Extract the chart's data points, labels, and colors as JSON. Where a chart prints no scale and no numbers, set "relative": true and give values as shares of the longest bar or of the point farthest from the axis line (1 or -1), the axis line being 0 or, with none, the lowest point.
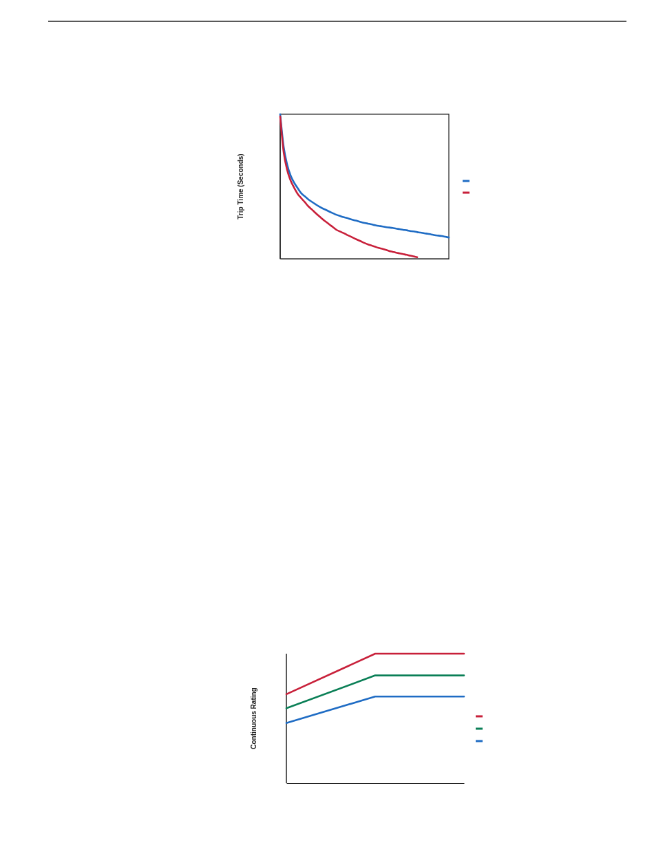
{
  "chart_data": [
    {
      "type": "line",
      "ylabel": "Trip Time (Seconds)",
      "relative": true,
      "categories": [
        null,
        null,
        null,
        null,
        null,
        null,
        null,
        null,
        null,
        null,
        null,
        null,
        null,
        null,
        null,
        null,
        null,
        null,
        null,
        null,
        null,
        null,
        null,
        null,
        null,
        null,
        null,
        null,
        null,
        null,
        null,
        null,
        null,
        null,
        null,
        null,
        null,
        null,
        null,
        null,
        null,
        null,
        null,
        null,
        null,
        null,
        null,
        null,
        null
      ],
      "series": [
        {
          "color": "#1f6cc4",
          "values": [
            1.0,
            0.773,
            0.65,
            0.574,
            0.525,
            0.488,
            0.453,
            0.432,
            0.411,
            0.394,
            0.378,
            0.362,
            0.349,
            0.338,
            0.326,
            0.315,
            0.304,
            0.296,
            0.288,
            0.282,
            0.274,
            0.267,
            0.261,
            0.254,
            0.248,
            0.243,
            0.238,
            0.232,
            0.227,
            0.224,
            0.219,
            0.216,
            0.213,
            0.208,
            0.205,
            0.2,
            0.197,
            0.192,
            0.189,
            0.184,
            0.181,
            0.176,
            0.173,
            0.168,
            0.163,
            0.16,
            0.157,
            0.152,
            0.147
          ]
        },
        {
          "color": "#c8203a",
          "values": [
            0.984,
            0.736,
            0.613,
            0.539,
            0.49,
            0.448,
            0.419,
            0.392,
            0.363,
            0.341,
            0.318,
            0.296,
            0.275,
            0.256,
            0.237,
            0.219,
            0.2,
            0.189,
            0.178,
            0.165,
            0.154,
            0.142,
            0.131,
            0.12,
            0.109,
            0.099,
            0.091,
            0.083,
            0.075,
            0.069,
            0.062,
            0.054,
            0.048,
            0.042,
            0.037,
            0.032,
            0.027,
            0.021,
            0.016,
            0.011,
            null,
            null,
            null,
            null,
            null,
            null,
            null,
            null,
            null
          ]
        }
      ]
    },
    {
      "type": "line",
      "ylabel": "Continuous Rating",
      "relative": true,
      "categories": [
        null,
        null,
        null
      ],
      "series": [
        {
          "color": "#c8203a",
          "values": [
            0.687,
            1.0,
            1.0
          ]
        },
        {
          "color": "#0a7f56",
          "values": [
            0.578,
            0.832,
            0.832
          ]
        },
        {
          "color": "#1f6cc4",
          "values": [
            0.464,
            0.669,
            0.669
          ]
        }
      ]
    }
  ]
}
